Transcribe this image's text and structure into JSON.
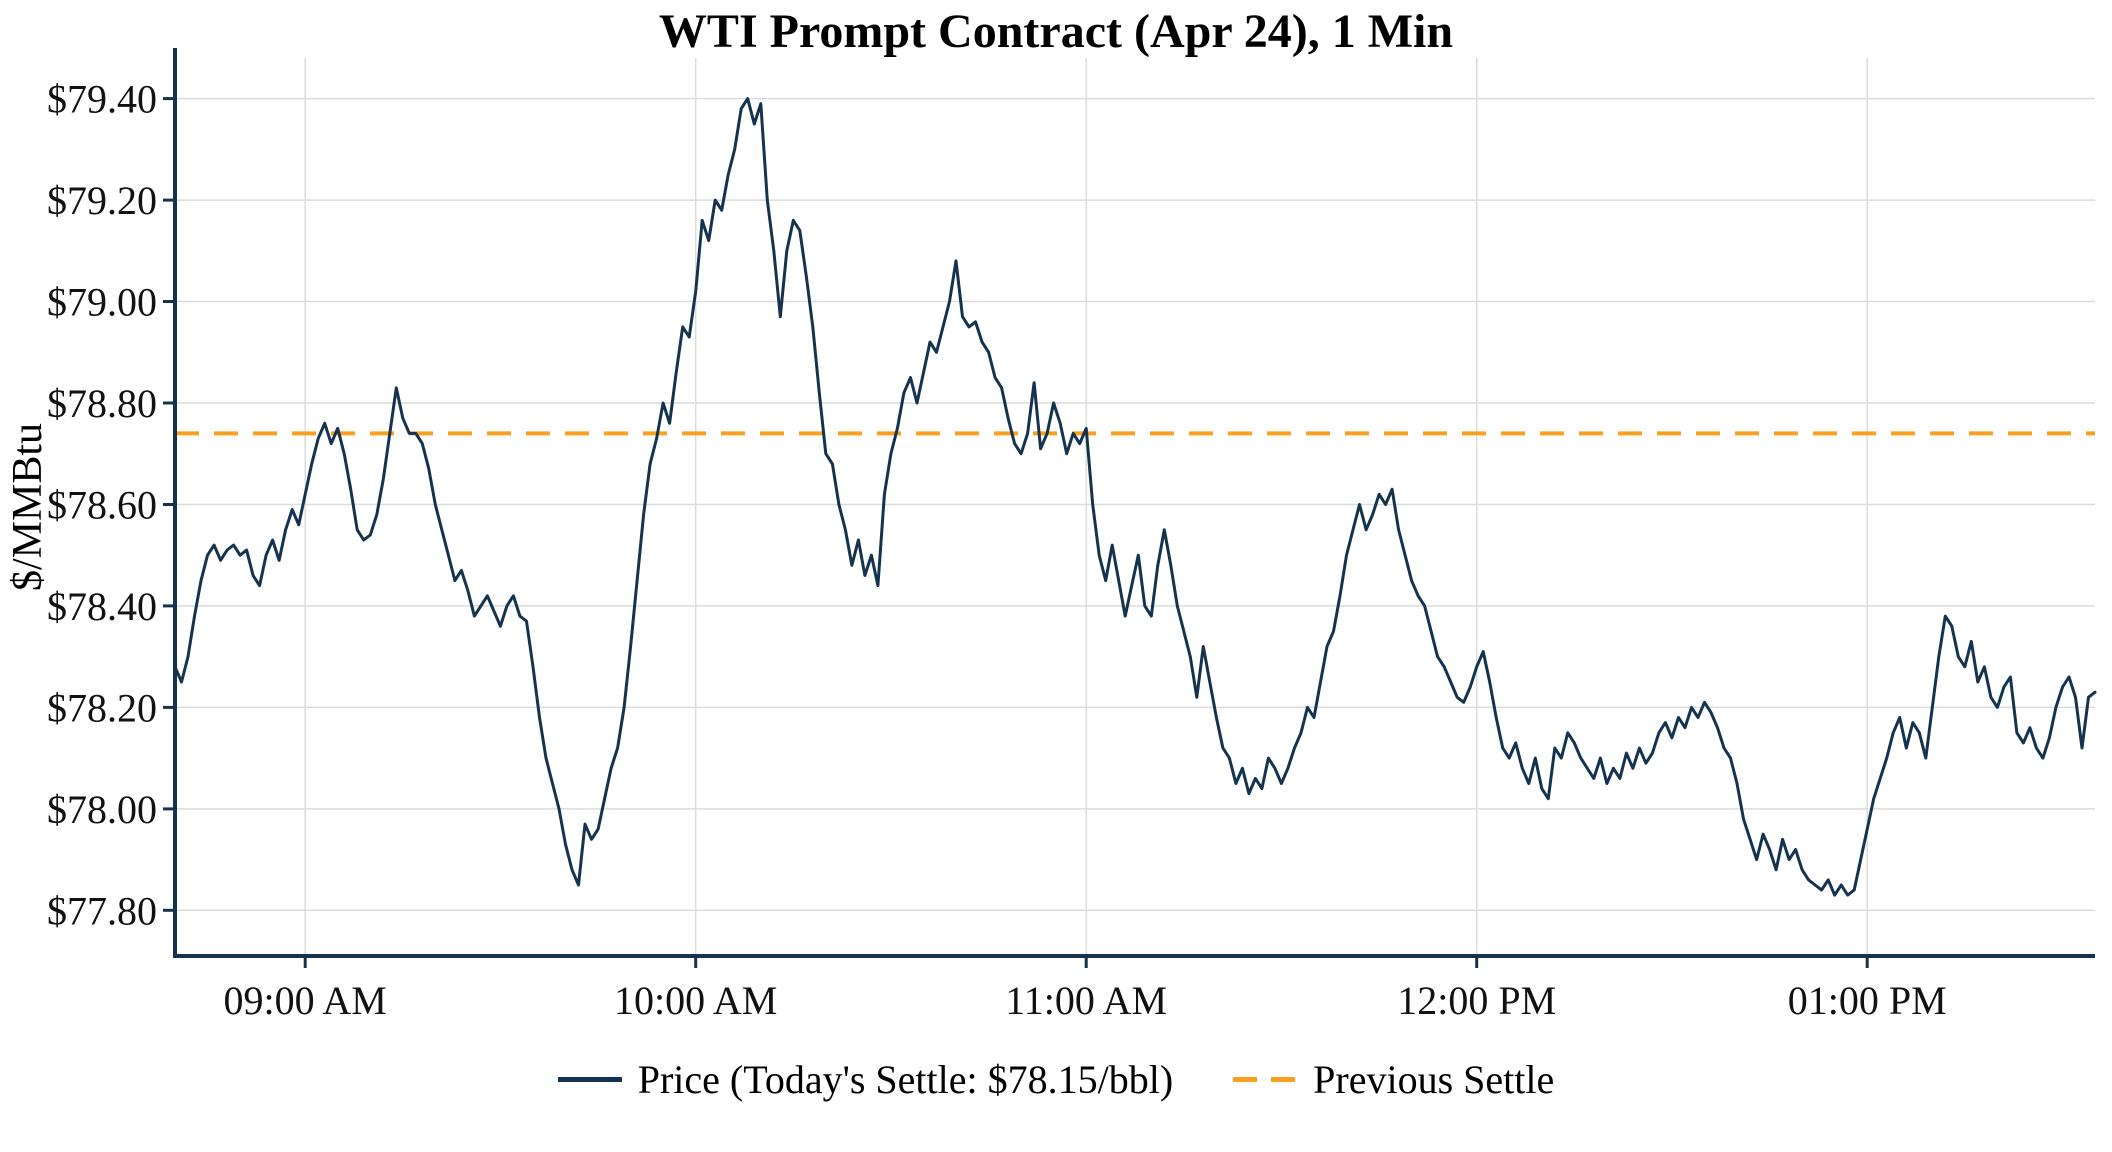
{
  "chart": {
    "title": "WTI Prompt Contract (Apr 24), 1 Min",
    "ylabel": "$/MMBtu"
  },
  "legend": {
    "price_label": "Price (Today's Settle: $78.15/bbl)",
    "settle_label": "Previous Settle"
  },
  "chart_data": {
    "type": "line",
    "title": "WTI Prompt Contract (Apr 24), 1 Min",
    "xlabel": "",
    "ylabel": "$/MMBtu",
    "grid": true,
    "legend_position": "bottom",
    "ylim": [
      77.71,
      79.48
    ],
    "x_start_time": "08:40 AM",
    "x_interval_minutes": 1,
    "x_end_time": "01:35 PM",
    "todays_settle": 78.15,
    "previous_settle": 78.74,
    "y_ticks": [
      {
        "value": 77.8,
        "label": "$77.80"
      },
      {
        "value": 78.0,
        "label": "$78.00"
      },
      {
        "value": 78.2,
        "label": "$78.20"
      },
      {
        "value": 78.4,
        "label": "$78.40"
      },
      {
        "value": 78.6,
        "label": "$78.60"
      },
      {
        "value": 78.8,
        "label": "$78.80"
      },
      {
        "value": 79.0,
        "label": "$79.00"
      },
      {
        "value": 79.2,
        "label": "$79.20"
      },
      {
        "value": 79.4,
        "label": "$79.40"
      }
    ],
    "x_ticks": [
      {
        "minutes": 20,
        "label": "09:00 AM"
      },
      {
        "minutes": 80,
        "label": "10:00 AM"
      },
      {
        "minutes": 140,
        "label": "11:00 AM"
      },
      {
        "minutes": 200,
        "label": "12:00 PM"
      },
      {
        "minutes": 260,
        "label": "01:00 PM"
      }
    ],
    "series": [
      {
        "name": "Price",
        "type": "line",
        "color": "#15334F",
        "values": [
          78.28,
          78.25,
          78.3,
          78.38,
          78.45,
          78.5,
          78.52,
          78.49,
          78.51,
          78.52,
          78.5,
          78.51,
          78.46,
          78.44,
          78.5,
          78.53,
          78.49,
          78.55,
          78.59,
          78.56,
          78.62,
          78.68,
          78.73,
          78.76,
          78.72,
          78.75,
          78.7,
          78.63,
          78.55,
          78.53,
          78.54,
          78.58,
          78.65,
          78.74,
          78.83,
          78.77,
          78.74,
          78.74,
          78.72,
          78.67,
          78.6,
          78.55,
          78.5,
          78.45,
          78.47,
          78.43,
          78.38,
          78.4,
          78.42,
          78.39,
          78.36,
          78.4,
          78.42,
          78.38,
          78.37,
          78.28,
          78.18,
          78.1,
          78.05,
          78.0,
          77.93,
          77.88,
          77.85,
          77.97,
          77.94,
          77.96,
          78.02,
          78.08,
          78.12,
          78.2,
          78.32,
          78.45,
          78.58,
          78.68,
          78.73,
          78.8,
          78.76,
          78.86,
          78.95,
          78.93,
          79.02,
          79.16,
          79.12,
          79.2,
          79.18,
          79.25,
          79.3,
          79.38,
          79.4,
          79.35,
          79.39,
          79.2,
          79.1,
          78.97,
          79.1,
          79.16,
          79.14,
          79.05,
          78.95,
          78.82,
          78.7,
          78.68,
          78.6,
          78.55,
          78.48,
          78.53,
          78.46,
          78.5,
          78.44,
          78.62,
          78.7,
          78.75,
          78.82,
          78.85,
          78.8,
          78.86,
          78.92,
          78.9,
          78.95,
          79.0,
          79.08,
          78.97,
          78.95,
          78.96,
          78.92,
          78.9,
          78.85,
          78.83,
          78.77,
          78.72,
          78.7,
          78.74,
          78.84,
          78.71,
          78.74,
          78.8,
          78.76,
          78.7,
          78.74,
          78.72,
          78.75,
          78.6,
          78.5,
          78.45,
          78.52,
          78.45,
          78.38,
          78.44,
          78.5,
          78.4,
          78.38,
          78.48,
          78.55,
          78.48,
          78.4,
          78.35,
          78.3,
          78.22,
          78.32,
          78.25,
          78.18,
          78.12,
          78.1,
          78.05,
          78.08,
          78.03,
          78.06,
          78.04,
          78.1,
          78.08,
          78.05,
          78.08,
          78.12,
          78.15,
          78.2,
          78.18,
          78.25,
          78.32,
          78.35,
          78.42,
          78.5,
          78.55,
          78.6,
          78.55,
          78.58,
          78.62,
          78.6,
          78.63,
          78.55,
          78.5,
          78.45,
          78.42,
          78.4,
          78.35,
          78.3,
          78.28,
          78.25,
          78.22,
          78.21,
          78.24,
          78.28,
          78.31,
          78.25,
          78.18,
          78.12,
          78.1,
          78.13,
          78.08,
          78.05,
          78.1,
          78.04,
          78.02,
          78.12,
          78.1,
          78.15,
          78.13,
          78.1,
          78.08,
          78.06,
          78.1,
          78.05,
          78.08,
          78.06,
          78.11,
          78.08,
          78.12,
          78.09,
          78.11,
          78.15,
          78.17,
          78.14,
          78.18,
          78.16,
          78.2,
          78.18,
          78.21,
          78.19,
          78.16,
          78.12,
          78.1,
          78.05,
          77.98,
          77.94,
          77.9,
          77.95,
          77.92,
          77.88,
          77.94,
          77.9,
          77.92,
          77.88,
          77.86,
          77.85,
          77.84,
          77.86,
          77.83,
          77.85,
          77.83,
          77.84,
          77.9,
          77.96,
          78.02,
          78.06,
          78.1,
          78.15,
          78.18,
          78.12,
          78.17,
          78.15,
          78.1,
          78.2,
          78.3,
          78.38,
          78.36,
          78.3,
          78.28,
          78.33,
          78.25,
          78.28,
          78.22,
          78.2,
          78.24,
          78.26,
          78.15,
          78.13,
          78.16,
          78.12,
          78.1,
          78.14,
          78.2,
          78.24,
          78.26,
          78.22,
          78.12,
          78.22,
          78.23
        ]
      },
      {
        "name": "Previous Settle",
        "type": "hline",
        "style": "dashed",
        "color": "#F9A11F",
        "value": 78.74
      }
    ]
  }
}
